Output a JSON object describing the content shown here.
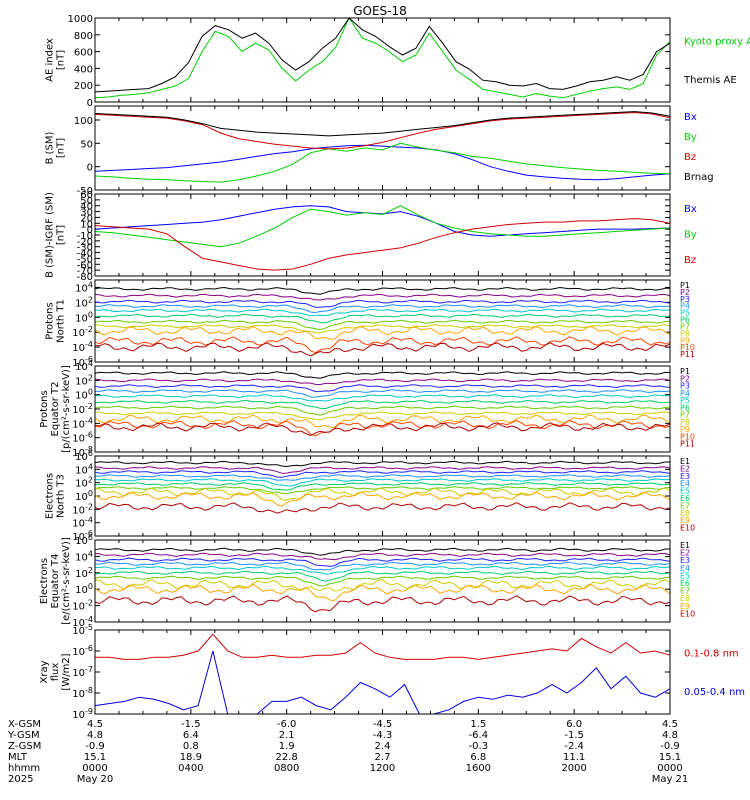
{
  "chart_data": {
    "type": "line",
    "title": "GOES-18",
    "x": {
      "unit_label": "hhmm",
      "ticks": [
        "0000",
        "0400",
        "0800",
        "1200",
        "1600",
        "2000",
        "0000"
      ]
    },
    "panels": [
      {
        "ylabel": "AE index [nT]",
        "scale": "linear",
        "ylim": [
          0,
          1000
        ],
        "ticks": [
          "0",
          "200",
          "400",
          "600",
          "800",
          "1000"
        ],
        "series": [
          {
            "name": "Kyoto proxy AE",
            "color": "#00d000",
            "values": [
              50,
              60,
              80,
              90,
              110,
              150,
              190,
              280,
              600,
              840,
              780,
              600,
              700,
              620,
              400,
              250,
              380,
              480,
              650,
              1000,
              760,
              700,
              600,
              480,
              560,
              820,
              600,
              380,
              270,
              150,
              120,
              90,
              60,
              100,
              70,
              50,
              90,
              130,
              160,
              180,
              150,
              220,
              560,
              720
            ]
          },
          {
            "name": "Themis AE",
            "color": "#000000",
            "values": [
              120,
              130,
              140,
              150,
              160,
              220,
              300,
              470,
              780,
              910,
              860,
              760,
              820,
              700,
              500,
              380,
              480,
              640,
              760,
              1030,
              860,
              780,
              660,
              560,
              640,
              900,
              700,
              480,
              390,
              260,
              240,
              200,
              190,
              220,
              160,
              150,
              190,
              240,
              260,
              300,
              260,
              330,
              600,
              700
            ]
          }
        ]
      },
      {
        "ylabel": "B (SM) [nT]",
        "scale": "linear",
        "ylim": [
          -50,
          130
        ],
        "ticks": [
          "-50",
          "0",
          "50",
          "100"
        ],
        "series": [
          {
            "name": "Bx",
            "color": "#0000ff",
            "values": [
              -10,
              -8,
              -6,
              -4,
              -2,
              2,
              6,
              10,
              16,
              22,
              28,
              32,
              38,
              42,
              45,
              46,
              44,
              42,
              40,
              36,
              28,
              15,
              0,
              -10,
              -18,
              -22,
              -25,
              -27,
              -28,
              -26,
              -22,
              -18,
              -15
            ]
          },
          {
            "name": "By",
            "color": "#00d000",
            "values": [
              -20,
              -22,
              -25,
              -27,
              -28,
              -30,
              -32,
              -33,
              -28,
              -20,
              -10,
              5,
              30,
              38,
              33,
              40,
              36,
              50,
              42,
              35,
              30,
              22,
              18,
              12,
              6,
              2,
              -2,
              -5,
              -8,
              -10,
              -12,
              -14,
              -15
            ]
          },
          {
            "name": "Bz",
            "color": "#d00000",
            "values": [
              112,
              110,
              108,
              106,
              104,
              98,
              90,
              72,
              60,
              54,
              48,
              44,
              40,
              38,
              40,
              45,
              52,
              62,
              72,
              80,
              86,
              92,
              98,
              102,
              104,
              106,
              108,
              110,
              112,
              114,
              116,
              113,
              105
            ]
          },
          {
            "name": "Brnag",
            "color": "#000000",
            "values": [
              114,
              112,
              110,
              108,
              106,
              100,
              92,
              82,
              78,
              74,
              72,
              70,
              68,
              66,
              68,
              70,
              72,
              76,
              80,
              84,
              88,
              94,
              100,
              104,
              106,
              108,
              110,
              112,
              114,
              116,
              118,
              115,
              108
            ]
          }
        ]
      },
      {
        "ylabel": "B (SM)-IGRF (SM) [nT]",
        "scale": "linear",
        "ylim": [
          -80,
          60
        ],
        "ticks": [
          "-80",
          "-70",
          "-60",
          "-50",
          "-40",
          "-30",
          "-20",
          "-10",
          "0",
          "10",
          "20",
          "30",
          "40",
          "50",
          "60"
        ],
        "series": [
          {
            "name": "Bx",
            "color": "#0000ff",
            "values": [
              0,
              2,
              4,
              6,
              8,
              10,
              12,
              16,
              22,
              28,
              34,
              38,
              40,
              38,
              30,
              28,
              26,
              30,
              22,
              10,
              -4,
              -10,
              -12,
              -10,
              -8,
              -6,
              -4,
              -2,
              0,
              0,
              0,
              1,
              2
            ]
          },
          {
            "name": "By",
            "color": "#00d000",
            "values": [
              -4,
              -6,
              -10,
              -14,
              -18,
              -22,
              -26,
              -30,
              -24,
              -12,
              2,
              20,
              34,
              30,
              24,
              28,
              25,
              40,
              24,
              10,
              2,
              -4,
              -8,
              -10,
              -12,
              -12,
              -10,
              -8,
              -6,
              -4,
              -2,
              0,
              2
            ]
          },
          {
            "name": "Bz",
            "color": "#d00000",
            "values": [
              6,
              4,
              2,
              0,
              -8,
              -30,
              -50,
              -56,
              -62,
              -68,
              -70,
              -68,
              -60,
              -50,
              -44,
              -40,
              -36,
              -32,
              -24,
              -14,
              -6,
              0,
              4,
              8,
              10,
              12,
              12,
              14,
              14,
              16,
              18,
              16,
              10
            ]
          }
        ]
      },
      {
        "ylabel": "Protons North T1",
        "scale": "log",
        "ylim": [
          -6,
          5
        ],
        "ticks": [
          "10^-6",
          "10^-4",
          "10^-2",
          "10^0",
          "10^2",
          "10^4"
        ],
        "series_labels": [
          "P1",
          "P2",
          "P3",
          "P4",
          "P5",
          "P6",
          "P7",
          "P8",
          "P9",
          "P10",
          "P11"
        ],
        "series_colors": [
          "#000000",
          "#8b008b",
          "#2020ff",
          "#1e90ff",
          "#00c8c8",
          "#00cc66",
          "#66cc00",
          "#cccc00",
          "#ffa500",
          "#ff4500",
          "#b00000"
        ],
        "levels": [
          3.8,
          2.9,
          2.1,
          1.5,
          0.9,
          0.2,
          -0.6,
          -1.2,
          -1.8,
          -3.2,
          -4.0
        ],
        "dip_center": 0.39
      },
      {
        "ylabel": "Protons Equator T2 [p/(cm²-s-sr-keV)]",
        "scale": "log",
        "ylim": [
          -8,
          4
        ],
        "ticks": [
          "10^-8",
          "10^-6",
          "10^-4",
          "10^-2",
          "10^0",
          "10^2",
          "10^4"
        ],
        "series_labels": [
          "P1",
          "P2",
          "P3",
          "P4",
          "P5",
          "P6",
          "P7",
          "P8",
          "P9",
          "P10",
          "P11"
        ],
        "series_colors": [
          "#000000",
          "#8b008b",
          "#2020ff",
          "#1e90ff",
          "#00c8c8",
          "#00cc66",
          "#66cc00",
          "#cccc00",
          "#ffa500",
          "#ff4500",
          "#b00000"
        ],
        "levels": [
          3.0,
          2.0,
          1.2,
          0.5,
          -0.2,
          -1.0,
          -1.8,
          -2.6,
          -3.4,
          -4.2,
          -4.5
        ],
        "dip_center": 0.39
      },
      {
        "ylabel": "Electrons North T3",
        "scale": "log",
        "ylim": [
          -6,
          6
        ],
        "ticks": [
          "10^-6",
          "10^-4",
          "10^-2",
          "10^0",
          "10^2",
          "10^4",
          "10^6"
        ],
        "series_labels": [
          "E1",
          "E2",
          "E3",
          "E4",
          "E5",
          "E6",
          "E7",
          "E8",
          "E9",
          "E10"
        ],
        "series_colors": [
          "#000000",
          "#8b008b",
          "#2020ff",
          "#1e90ff",
          "#00c8c8",
          "#00cc66",
          "#66cc00",
          "#cccc00",
          "#ffa500",
          "#b00000"
        ],
        "levels": [
          5.0,
          4.2,
          3.6,
          3.0,
          2.4,
          1.8,
          1.2,
          0.6,
          0.0,
          -1.6
        ],
        "dip_center": 0.33
      },
      {
        "ylabel": "Electrons Equator T4 [e/(cm²-s-sr-keV)]",
        "scale": "log",
        "ylim": [
          -4,
          6
        ],
        "ticks": [
          "10^-4",
          "10^-2",
          "10^0",
          "10^2",
          "10^4",
          "10^6"
        ],
        "series_labels": [
          "E1",
          "E2",
          "E3",
          "E4",
          "E5",
          "E6",
          "E7",
          "E8",
          "E9",
          "E10"
        ],
        "series_colors": [
          "#000000",
          "#8b008b",
          "#2020ff",
          "#1e90ff",
          "#00c8c8",
          "#00cc66",
          "#66cc00",
          "#cccc00",
          "#ffa500",
          "#b00000"
        ],
        "levels": [
          4.8,
          4.2,
          3.6,
          3.1,
          2.6,
          2.0,
          1.4,
          0.6,
          0.0,
          -1.4
        ],
        "dip_center": 0.4
      },
      {
        "ylabel": "Xray flux [W/m2]",
        "scale": "log",
        "ylim": [
          -9,
          -5
        ],
        "ticks": [
          "10^-9",
          "10^-8",
          "10^-7",
          "10^-6",
          "10^-5"
        ],
        "series": [
          {
            "name": "0.1-0.8 nm",
            "color": "#d00000",
            "values": [
              -6.3,
              -6.3,
              -6.4,
              -6.4,
              -6.3,
              -6.3,
              -6.2,
              -6.0,
              -5.2,
              -6.0,
              -6.3,
              -6.3,
              -6.2,
              -6.3,
              -6.3,
              -6.2,
              -6.2,
              -6.1,
              -5.6,
              -6.1,
              -6.3,
              -6.4,
              -6.4,
              -6.4,
              -6.3,
              -6.3,
              -6.4,
              -6.3,
              -6.2,
              -6.1,
              -6.0,
              -5.9,
              -6.0,
              -5.4,
              -5.8,
              -6.1,
              -5.6,
              -6.1,
              -6.0,
              -6.2
            ]
          },
          {
            "name": "0.05-0.4 nm",
            "color": "#0000dd",
            "values": [
              -8.6,
              -8.5,
              -8.4,
              -8.2,
              -8.3,
              -8.5,
              -8.8,
              -8.6,
              -6.0,
              -9.0,
              -9.0,
              -9.0,
              -8.4,
              -8.4,
              -8.2,
              -8.6,
              -8.8,
              -8.2,
              -7.5,
              -7.8,
              -8.2,
              -7.6,
              -9.0,
              -9.0,
              -8.8,
              -8.4,
              -8.2,
              -8.3,
              -8.1,
              -8.2,
              -8.0,
              -7.6,
              -8.0,
              -7.5,
              -6.8,
              -7.8,
              -7.2,
              -8.0,
              -8.2,
              -7.8
            ]
          }
        ]
      }
    ]
  },
  "ephemeris": {
    "rows": [
      {
        "label": "X-GSM",
        "values": [
          "4.5",
          "-1.5",
          "-6.0",
          "-4.5",
          "1.5",
          "6.0",
          "4.5"
        ]
      },
      {
        "label": "Y-GSM",
        "values": [
          "4.8",
          "6.4",
          "2.1",
          "-4.3",
          "-6.4",
          "-1.5",
          "4.8"
        ]
      },
      {
        "label": "Z-GSM",
        "values": [
          "-0.9",
          "0.8",
          "1.9",
          "2.4",
          "-0.3",
          "-2.4",
          "-0.9"
        ]
      },
      {
        "label": "MLT",
        "values": [
          "15.1",
          "18.9",
          "22.8",
          "2.7",
          "6.8",
          "11.1",
          "15.1"
        ]
      },
      {
        "label": "hhmm",
        "values": [
          "0000",
          "0400",
          "0800",
          "1200",
          "1600",
          "2000",
          "0000"
        ]
      }
    ],
    "year": "2025",
    "date_start": "May 20",
    "date_end": "May 21"
  }
}
